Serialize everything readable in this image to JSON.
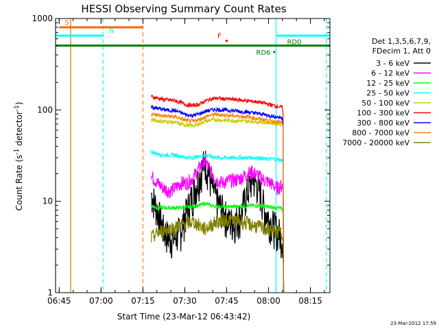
{
  "chart_data": {
    "type": "line",
    "title": "HESSI Observing Summary Count Rates",
    "xlabel": "Start Time (23-Mar-12 06:43:42)",
    "ylabel_main": "Count Rate (s",
    "ylabel_sup1": "-1",
    "ylabel_mid": " detector",
    "ylabel_sup2": "-1",
    "ylabel_end": ")",
    "yscale": "log",
    "ylim": [
      1,
      1000
    ],
    "xlim": [
      "06:43:42",
      "08:22:00"
    ],
    "x_ticks": [
      "06:45",
      "07:00",
      "07:15",
      "07:30",
      "07:45",
      "08:00",
      "08:15"
    ],
    "x_tick_minutes": [
      1.3,
      16.3,
      31.3,
      46.3,
      61.3,
      76.3,
      91.3
    ],
    "y_ticks": [
      1,
      10,
      100,
      1000
    ],
    "y_tick_labels": [
      "1",
      "10",
      "100",
      "1000"
    ],
    "legend_header": [
      "Det 1,3,5,6,7,9,",
      "FDecim 1, Att 0"
    ],
    "legend_placement": "right",
    "footer_timestamp": "23-Mar-2012 17:59",
    "series": [
      {
        "name": "3 - 6 keV",
        "color": "#000000",
        "t": [
          0,
          2,
          4,
          6,
          8,
          10,
          12,
          14,
          16,
          18,
          20,
          22,
          24,
          26,
          28,
          30,
          32,
          34,
          36,
          38,
          40,
          42,
          44
        ],
        "values": [
          12,
          8,
          5,
          4,
          4,
          5,
          8,
          12,
          18,
          28,
          16,
          10,
          8,
          6,
          6,
          7,
          12,
          18,
          14,
          8,
          6,
          5,
          4
        ]
      },
      {
        "name": "6 - 12 keV",
        "color": "#ff00ff",
        "t": [
          0,
          2,
          4,
          6,
          8,
          10,
          12,
          14,
          16,
          18,
          20,
          22,
          24,
          26,
          28,
          30,
          32,
          34,
          36,
          38,
          40,
          42,
          44
        ],
        "values": [
          19,
          16,
          14,
          13,
          14,
          16,
          16,
          18,
          23,
          28,
          21,
          17,
          16,
          17,
          17,
          18,
          20,
          21,
          19,
          17,
          16,
          14,
          15
        ]
      },
      {
        "name": "12 - 25 keV",
        "color": "#00ff00",
        "t": [
          0,
          2,
          4,
          6,
          8,
          10,
          12,
          14,
          16,
          18,
          20,
          22,
          24,
          26,
          28,
          30,
          32,
          34,
          36,
          38,
          40,
          42,
          44
        ],
        "values": [
          9,
          8.5,
          8.5,
          8.5,
          8.5,
          8.5,
          8.6,
          8.8,
          9,
          9.5,
          9,
          8.8,
          8.7,
          8.7,
          8.8,
          8.8,
          8.9,
          9,
          9,
          8.8,
          8.6,
          8.5,
          8.2
        ]
      },
      {
        "name": "25 - 50 keV",
        "color": "#00ffff",
        "t": [
          0,
          2,
          4,
          6,
          8,
          10,
          12,
          14,
          16,
          18,
          20,
          22,
          24,
          26,
          28,
          30,
          32,
          34,
          36,
          38,
          40,
          42,
          44
        ],
        "values": [
          35,
          33,
          32,
          32,
          32,
          31,
          30,
          30,
          31,
          32,
          31,
          30,
          30,
          30,
          30,
          30,
          30,
          30,
          30,
          29,
          29,
          29,
          28
        ]
      },
      {
        "name": "50 - 100 keV",
        "color": "#cccc00",
        "t": [
          0,
          2,
          4,
          6,
          8,
          10,
          12,
          14,
          16,
          18,
          20,
          22,
          24,
          26,
          28,
          30,
          32,
          34,
          36,
          38,
          40,
          42,
          44
        ],
        "values": [
          78,
          76,
          75,
          74,
          73,
          70,
          68,
          67,
          70,
          75,
          78,
          78,
          77,
          77,
          76,
          76,
          75,
          75,
          74,
          73,
          72,
          71,
          70
        ]
      },
      {
        "name": "100 - 300 keV",
        "color": "#ff0000",
        "t": [
          0,
          2,
          4,
          6,
          8,
          10,
          12,
          14,
          16,
          18,
          20,
          22,
          24,
          26,
          28,
          30,
          32,
          34,
          36,
          38,
          40,
          42,
          44
        ],
        "values": [
          140,
          135,
          130,
          128,
          126,
          120,
          113,
          112,
          115,
          125,
          132,
          134,
          132,
          131,
          130,
          128,
          126,
          124,
          122,
          118,
          114,
          110,
          106
        ]
      },
      {
        "name": "300 - 800 keV",
        "color": "#0000ff",
        "t": [
          0,
          2,
          4,
          6,
          8,
          10,
          12,
          14,
          16,
          18,
          20,
          22,
          24,
          26,
          28,
          30,
          32,
          34,
          36,
          38,
          40,
          42,
          44
        ],
        "values": [
          108,
          104,
          101,
          99,
          98,
          93,
          88,
          87,
          90,
          96,
          100,
          101,
          100,
          99,
          98,
          96,
          95,
          93,
          91,
          89,
          86,
          84,
          82
        ]
      },
      {
        "name": "800 - 7000 keV",
        "color": "#ff8000",
        "t": [
          0,
          2,
          4,
          6,
          8,
          10,
          12,
          14,
          16,
          18,
          20,
          22,
          24,
          26,
          28,
          30,
          32,
          34,
          36,
          38,
          40,
          42,
          44
        ],
        "values": [
          90,
          88,
          86,
          85,
          84,
          80,
          76,
          75,
          78,
          84,
          88,
          89,
          88,
          87,
          86,
          85,
          84,
          82,
          80,
          78,
          76,
          74,
          72
        ]
      },
      {
        "name": "7000 - 20000 keV",
        "color": "#808000",
        "t": [
          0,
          2,
          4,
          6,
          8,
          10,
          12,
          14,
          16,
          18,
          20,
          22,
          24,
          26,
          28,
          30,
          32,
          34,
          36,
          38,
          40,
          42,
          44
        ],
        "values": [
          4,
          4.5,
          4.8,
          5,
          5.2,
          5.5,
          5.8,
          6,
          5.5,
          5,
          5.5,
          6,
          6.2,
          6.3,
          6.2,
          6,
          5.8,
          5.5,
          5.3,
          5,
          4.8,
          4.7,
          4.5
        ]
      }
    ],
    "flags": [
      {
        "label": "S",
        "color": "#ff6600",
        "start": 1.3,
        "end": 31.3,
        "y": 800
      },
      {
        "label": "N",
        "color": "#00ffff",
        "start": 0,
        "end": 17.3,
        "y": 650
      },
      {
        "label": "F",
        "color": "#ff0000",
        "start": 60.9,
        "end": 61.7,
        "y": 570
      },
      {
        "label": "RD0",
        "color": "#008000",
        "start": 0,
        "end": 98.3,
        "y": 505
      },
      {
        "label": "RD6",
        "color": "#008000",
        "start": 78.0,
        "end": 78.7,
        "y": 430
      },
      {
        "label": "",
        "color": "#00ffff",
        "start": 79.0,
        "end": 98.3,
        "y": 650
      }
    ],
    "vertical_lines": [
      {
        "t": 0.0,
        "color": "#00ffff",
        "style": "solid"
      },
      {
        "t": 5.4,
        "color": "#cc7700",
        "style": "solid"
      },
      {
        "t": 17.0,
        "color": "#00ffff",
        "style": "dashed"
      },
      {
        "t": 31.3,
        "color": "#ff8000",
        "style": "dashed"
      },
      {
        "t": 79.0,
        "color": "#00ffff",
        "style": "solid"
      },
      {
        "t": 97.0,
        "color": "#00ffff",
        "style": "dashed"
      }
    ],
    "data_start_minute": 34.3,
    "data_end_minute": 81.3
  }
}
